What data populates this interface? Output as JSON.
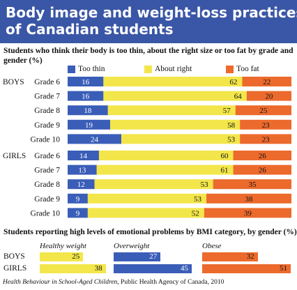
{
  "title_lines": [
    "Body image and weight-loss practices",
    "of Canadian students"
  ],
  "colors": {
    "header_bg": "#3a56a6",
    "too_thin": "#3a5eb8",
    "about_right": "#f3e64a",
    "too_fat": "#ec6a2c",
    "healthy_weight": "#f3e64a",
    "overweight": "#3a5eb8",
    "obese": "#ec6a2c"
  },
  "chart_data": [
    {
      "type": "bar",
      "subtype": "stacked-horizontal-100",
      "title": "Students who think their body is too thin, about the right size or too fat by grade and gender (%)",
      "groups": [
        "BOYS",
        "GIRLS"
      ],
      "categories": [
        "Grade 6",
        "Grade 7",
        "Grade 8",
        "Grade 9",
        "Grade 10"
      ],
      "series": [
        {
          "name": "Too thin",
          "color": "#3a5eb8",
          "values": {
            "BOYS": [
              16,
              16,
              18,
              19,
              24
            ],
            "GIRLS": [
              14,
              13,
              12,
              9,
              9
            ]
          }
        },
        {
          "name": "About right",
          "color": "#f3e64a",
          "values": {
            "BOYS": [
              62,
              64,
              57,
              58,
              53
            ],
            "GIRLS": [
              60,
              61,
              53,
              53,
              52
            ]
          }
        },
        {
          "name": "Too fat",
          "color": "#ec6a2c",
          "values": {
            "BOYS": [
              22,
              20,
              25,
              23,
              23
            ],
            "GIRLS": [
              26,
              26,
              35,
              38,
              39
            ]
          }
        }
      ],
      "legend": "top",
      "xlim": [
        0,
        100
      ],
      "grid": false
    },
    {
      "type": "bar",
      "subtype": "horizontal-small-multiples",
      "title": "Students reporting high levels of emotional problems by BMI category, by gender (%)",
      "categories": [
        "BOYS",
        "GIRLS"
      ],
      "series": [
        {
          "name": "Healthy weight",
          "color": "#f3e64a",
          "values": [
            25,
            38
          ]
        },
        {
          "name": "Overweight",
          "color": "#3a5eb8",
          "values": [
            27,
            45
          ]
        },
        {
          "name": "Obese",
          "color": "#ec6a2c",
          "values": [
            32,
            51
          ]
        }
      ],
      "xlim": [
        0,
        51
      ],
      "grid": false
    }
  ],
  "source": {
    "italic": "Health Behaviour in School-Aged Children",
    "rest": ", Public Health Agency of Canada, 2010"
  }
}
